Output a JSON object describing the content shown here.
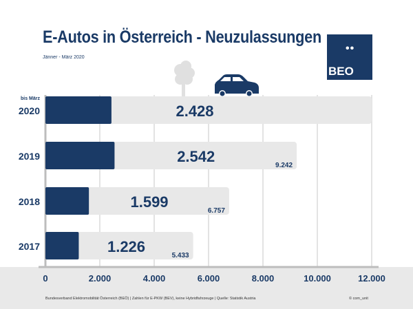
{
  "chart_data": {
    "type": "bar",
    "orientation": "horizontal",
    "title": "E-Autos in Österreich - Neuzulassungen",
    "subtitle": "Jänner - März 2020",
    "categories": [
      "2020",
      "2019",
      "2018",
      "2017"
    ],
    "category_notes": {
      "2020": "bis März"
    },
    "series": [
      {
        "values": [
          2428,
          2542,
          1599,
          1226
        ],
        "labels": [
          "2.428",
          "2.542",
          "1.599",
          "1.226"
        ],
        "color": "#1a3a66"
      },
      {
        "values": [
          null,
          9242,
          6757,
          5433
        ],
        "labels": [
          "",
          "9.242",
          "6.757",
          "5.433"
        ],
        "color": "#e8e8e8"
      }
    ],
    "xlim": [
      0,
      12000
    ],
    "xticks": [
      0,
      2000,
      4000,
      6000,
      8000,
      10000,
      12000
    ],
    "xtick_labels": [
      "0",
      "2.000",
      "4.000",
      "6.000",
      "8.000",
      "10.000",
      "12.000"
    ],
    "grid": true
  },
  "logo": {
    "text": "BEO",
    "dots": "••"
  },
  "footer": {
    "source": "Bundesverband Elektromobilität Österreich (BEÖ) | Zahlen für E-PKW (BEV), keine Hybridfahrzeuge | Quelle: Statistik Austria",
    "copyright": "© com_unit"
  },
  "colors": {
    "primary": "#1a3a66",
    "track": "#e8e8e8",
    "grid": "#d0d0d0"
  }
}
